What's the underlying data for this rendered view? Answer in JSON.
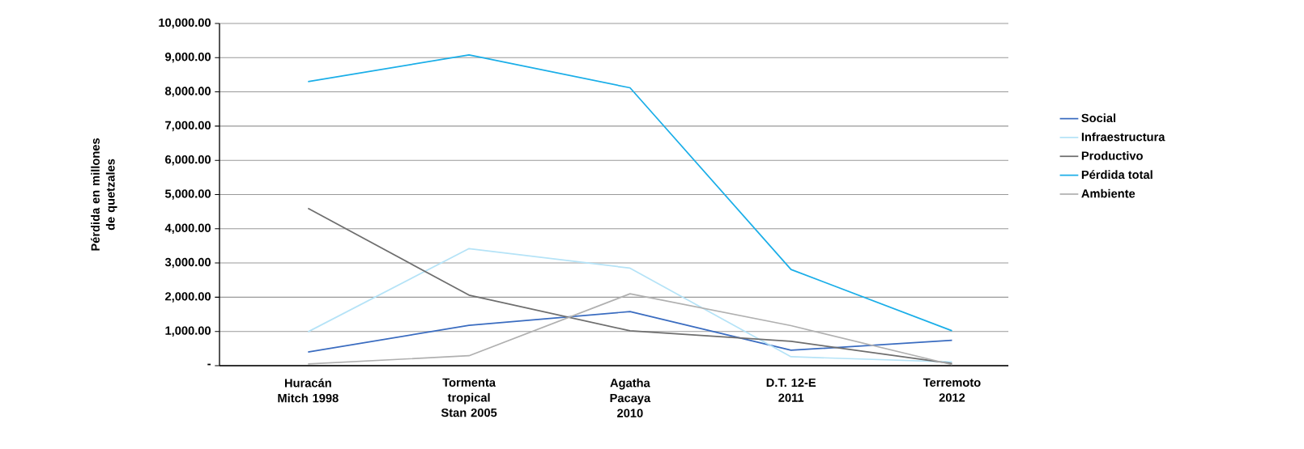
{
  "chart_data": {
    "type": "line",
    "ylabel": "Pérdida en millones de quetzales",
    "categories": [
      "Huracán Mitch 1998",
      "Tormenta tropical Stan 2005",
      "Agatha Pacaya 2010",
      "D.T. 12-E 2011",
      "Terremoto 2012"
    ],
    "series": [
      {
        "name": "Social",
        "color": "#3a6cc0",
        "values": [
          400,
          1180,
          1580,
          450,
          740
        ]
      },
      {
        "name": "Infraestructura",
        "color": "#b5e3f7",
        "values": [
          990,
          3420,
          2850,
          260,
          110
        ]
      },
      {
        "name": "Productivo",
        "color": "#6e6e6e",
        "values": [
          4600,
          2060,
          1020,
          710,
          60
        ]
      },
      {
        "name": "Pérdida total",
        "color": "#1aaee8",
        "values": [
          8300,
          9080,
          8120,
          2810,
          1020
        ]
      },
      {
        "name": "Ambiente",
        "color": "#b0b0b0",
        "values": [
          50,
          290,
          2100,
          1170,
          30
        ]
      }
    ],
    "ylim": [
      0,
      10000
    ],
    "yticks": [
      {
        "value": 0,
        "label": "-"
      },
      {
        "value": 1000,
        "label": "1,000.00"
      },
      {
        "value": 2000,
        "label": "2,000.00"
      },
      {
        "value": 3000,
        "label": "3,000.00"
      },
      {
        "value": 4000,
        "label": "4,000.00"
      },
      {
        "value": 5000,
        "label": "5,000.00"
      },
      {
        "value": 6000,
        "label": "6,000.00"
      },
      {
        "value": 7000,
        "label": "7,000.00"
      },
      {
        "value": 8000,
        "label": "8,000.00"
      },
      {
        "value": 9000,
        "label": "9,000.00"
      },
      {
        "value": 10000,
        "label": "10,000.00"
      }
    ],
    "grid": "y",
    "legend": "right",
    "marker": "none",
    "line_style": "solid"
  }
}
